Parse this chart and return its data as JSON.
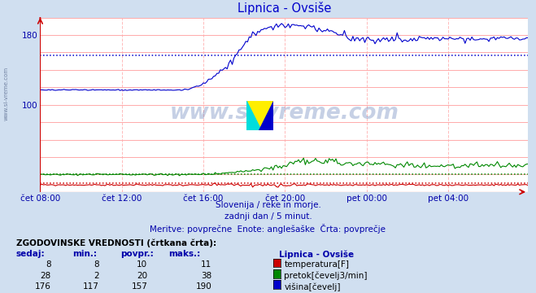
{
  "title": "Lipnica - Ovsiše",
  "title_color": "#0000cc",
  "bg_color": "#d0dff0",
  "plot_bg_color": "#ffffff",
  "grid_h_color": "#ffaaaa",
  "grid_v_color": "#ffbbbb",
  "label_color": "#0000aa",
  "temp_color": "#cc0000",
  "flow_color": "#008800",
  "height_color": "#0000cc",
  "temp_avg": 10,
  "flow_avg": 20,
  "height_avg": 157,
  "y_min": 0,
  "y_max": 200,
  "y_ticks": [
    100,
    180
  ],
  "x_ticks": [
    0,
    48,
    96,
    144,
    192,
    240
  ],
  "x_tick_labels": [
    "čet 08:00",
    "čet 12:00",
    "čet 16:00",
    "čet 20:00",
    "pet 00:00",
    "pet 04:00"
  ],
  "n_points": 288,
  "text_lines": [
    "Slovenija / reke in morje.",
    "zadnji dan / 5 minut.",
    "Meritve: povprečne  Enote: anglešaške  Črta: povprečje"
  ],
  "table_header": "ZGODOVINSKE VREDNOSTI (črtkana črta):",
  "table_col_headers": [
    "sedaj:",
    "min.:",
    "povpr.:",
    "maks.:"
  ],
  "station_name": "Lipnica - Ovsiše",
  "table_data": [
    {
      "sedaj": 8,
      "min": 8,
      "povpr": 10,
      "maks": 11,
      "label": "temperatura[F]",
      "color": "#cc0000"
    },
    {
      "sedaj": 28,
      "min": 2,
      "povpr": 20,
      "maks": 38,
      "label": "pretok[čevelj3/min]",
      "color": "#008800"
    },
    {
      "sedaj": 176,
      "min": 117,
      "povpr": 157,
      "maks": 190,
      "label": "višina[čevelj]",
      "color": "#0000cc"
    }
  ]
}
